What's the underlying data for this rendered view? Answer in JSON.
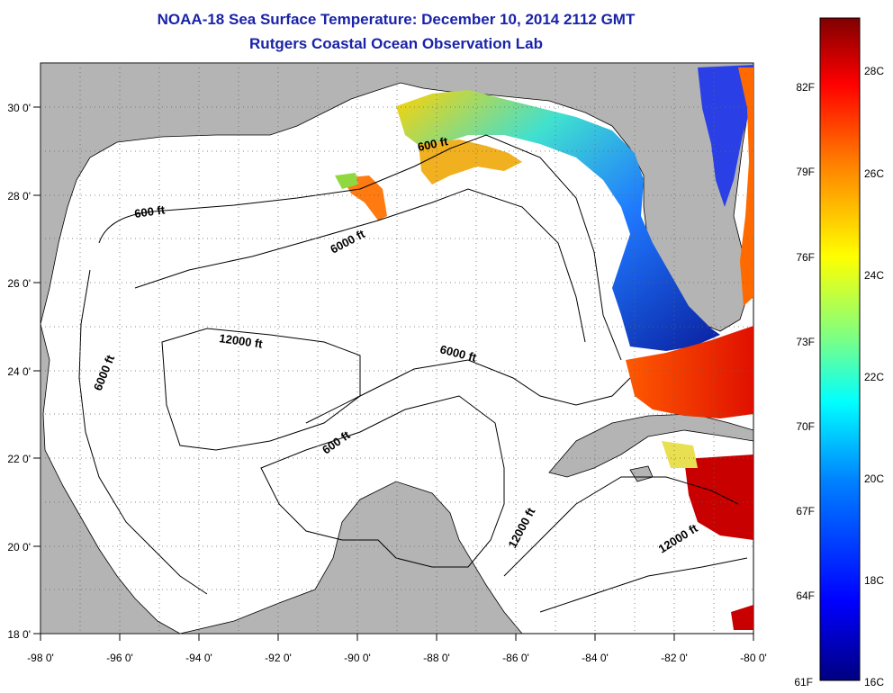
{
  "title": "NOAA-18 Sea Surface Temperature:  December 10, 2014 2112 GMT",
  "subtitle": "Rutgers Coastal Ocean Observation Lab",
  "map": {
    "lon_range": [
      -98,
      -80
    ],
    "lat_range": [
      18,
      31
    ],
    "lon_ticks": [
      "-98 0'",
      "-96 0'",
      "-94 0'",
      "-92 0'",
      "-90 0'",
      "-88 0'",
      "-86 0'",
      "-84 0'",
      "-82 0'",
      "-80 0'"
    ],
    "lat_ticks": [
      "18 0'",
      "20 0'",
      "22 0'",
      "24 0'",
      "26 0'",
      "28 0'",
      "30 0'"
    ],
    "grid": "dotted",
    "land_color": "#b4b4b4",
    "no_data_color": "#ffffff",
    "contour_labels": [
      "600 ft",
      "600 ft",
      "6000 ft",
      "12000 ft",
      "6000 ft",
      "6000 ft",
      "600 ft",
      "12000 ft",
      "12000 ft"
    ]
  },
  "colorbar": {
    "fahrenheit_labels": [
      "82F",
      "79F",
      "76F",
      "73F",
      "70F",
      "67F",
      "64F",
      "61F"
    ],
    "celsius_labels": [
      "28C",
      "26C",
      "24C",
      "22C",
      "20C",
      "18C",
      "16C"
    ],
    "colormap": [
      "#800000",
      "#ff0000",
      "#ff8000",
      "#ffff00",
      "#80ff80",
      "#00ffff",
      "#0080ff",
      "#0000ff",
      "#000080"
    ]
  }
}
